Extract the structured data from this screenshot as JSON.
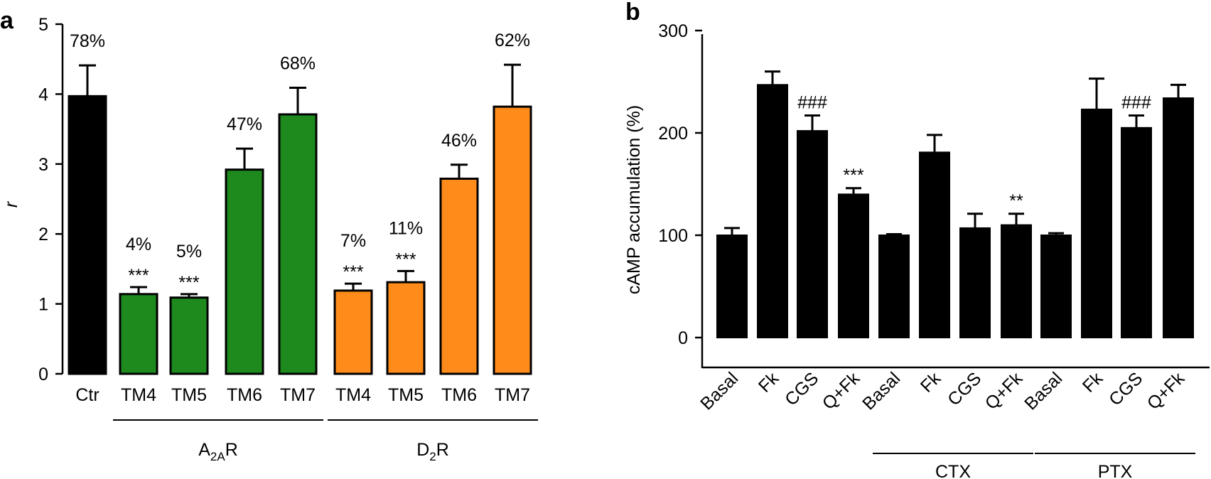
{
  "chart_data": [
    {
      "panel": "a",
      "type": "bar",
      "ylabel": "r",
      "ylim": [
        0,
        5
      ],
      "yticks": [
        "0",
        "1",
        "2",
        "3",
        "4",
        "5"
      ],
      "categories": [
        "Ctr",
        "TM4",
        "TM5",
        "TM6",
        "TM7",
        "TM4",
        "TM5",
        "TM6",
        "TM7"
      ],
      "values": [
        3.97,
        1.14,
        1.09,
        2.92,
        3.71,
        1.19,
        1.31,
        2.79,
        3.82
      ],
      "errors": [
        0.44,
        0.1,
        0.05,
        0.3,
        0.38,
        0.1,
        0.16,
        0.2,
        0.6
      ],
      "colors": [
        "#000000",
        "#1e8a1e",
        "#1e8a1e",
        "#1e8a1e",
        "#1e8a1e",
        "#ff8c1a",
        "#ff8c1a",
        "#ff8c1a",
        "#ff8c1a"
      ],
      "percent_labels": [
        "78%",
        "4%",
        "5%",
        "47%",
        "68%",
        "7%",
        "11%",
        "46%",
        "62%"
      ],
      "significance": [
        "",
        "***",
        "***",
        "",
        "",
        "***",
        "***",
        "",
        ""
      ],
      "groups": [
        {
          "label_main": "A",
          "label_sub": "2A",
          "label_end": "R",
          "from": 1,
          "to": 4
        },
        {
          "label_main": "D",
          "label_sub": "2",
          "label_end": "R",
          "from": 5,
          "to": 8
        }
      ]
    },
    {
      "panel": "b",
      "type": "bar",
      "ylabel": "cAMP accumulation (%)",
      "ylim": [
        0,
        300
      ],
      "yticks": [
        "0",
        "100",
        "200",
        "300"
      ],
      "categories": [
        "Basal",
        "Fk",
        "CGS",
        "Q+Fk",
        "Basal",
        "Fk",
        "CGS",
        "Q+Fk",
        "Basal",
        "Fk",
        "CGS",
        "Q+Fk"
      ],
      "values": [
        100,
        247,
        202,
        140,
        100,
        181,
        107,
        110,
        100,
        223,
        205,
        234
      ],
      "errors": [
        7,
        13,
        15,
        6,
        1,
        17,
        14,
        11,
        2,
        30,
        12,
        13
      ],
      "colors": [
        "#000000",
        "#000000",
        "#000000",
        "#000000",
        "#000000",
        "#000000",
        "#000000",
        "#000000",
        "#000000",
        "#000000",
        "#000000",
        "#000000"
      ],
      "significance": [
        "",
        "",
        "###",
        "***",
        "",
        "",
        "",
        "**",
        "",
        "",
        "###",
        ""
      ],
      "groups": [
        {
          "label": "CTX",
          "from": 4,
          "to": 7
        },
        {
          "label": "PTX",
          "from": 8,
          "to": 11
        }
      ]
    }
  ]
}
